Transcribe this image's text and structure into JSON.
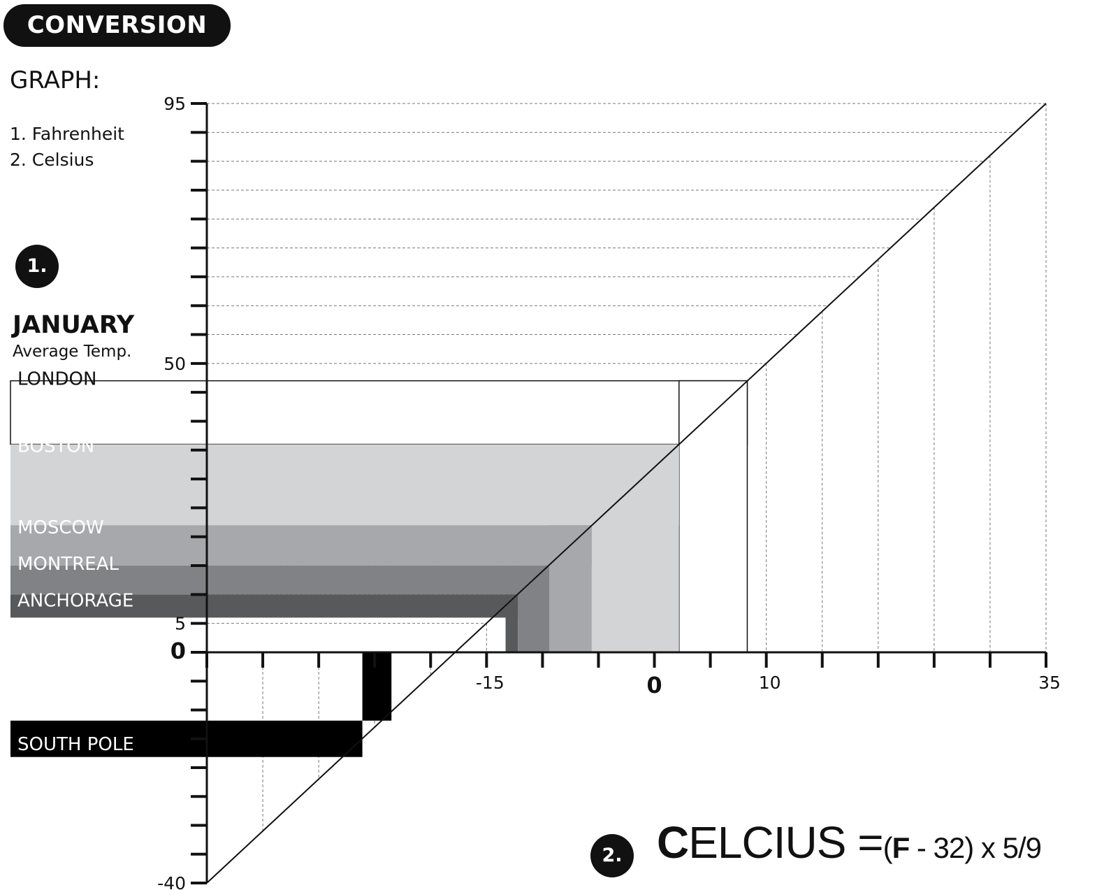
{
  "header": {
    "badge": "CONVERSION",
    "graph_label": "GRAPH:"
  },
  "legend": [
    "1. Fahrenheit",
    "2. Celsius"
  ],
  "badges": {
    "one": "1.",
    "two": "2."
  },
  "month": "JANUARY",
  "subtitle": "Average Temp.",
  "formula": {
    "first_letter": "C",
    "rest": "ELCIUS =",
    "paren_open": "(",
    "f": "F",
    "expr": " - 32) x 5/9"
  },
  "chart_data": {
    "type": "bar",
    "title": "CONVERSION",
    "y_axis": {
      "name": "Fahrenheit",
      "range": [
        -40,
        95
      ],
      "labeled_ticks": [
        {
          "value": 95,
          "label": "95"
        },
        {
          "value": 50,
          "label": "50"
        },
        {
          "value": 5,
          "label": "5"
        },
        {
          "value": 0,
          "label": "0"
        },
        {
          "value": -40,
          "label": "-40"
        }
      ]
    },
    "x_axis": {
      "name": "Celsius",
      "range": [
        -40,
        35
      ],
      "labeled_ticks": [
        {
          "value": -15,
          "label": "-15"
        },
        {
          "value": 0,
          "label": "0"
        },
        {
          "value": 10,
          "label": "10"
        },
        {
          "value": 35,
          "label": "35"
        }
      ]
    },
    "conversion_line": {
      "from": [
        -40,
        -40
      ],
      "to": [
        35,
        95
      ]
    },
    "categories": [
      "LONDON",
      "BOSTON",
      "MOSCOW",
      "MONTREAL",
      "ANCHORAGE",
      "SOUTH POLE"
    ],
    "fahrenheit": [
      47,
      36,
      22,
      15,
      10,
      -15
    ],
    "celsius": [
      8.3,
      2.2,
      -5.6,
      -9.4,
      -12.2,
      -26.1
    ],
    "colors": [
      "#ffffff",
      "#d3d4d6",
      "#a6a8ab",
      "#808285",
      "#58595b",
      "#000000"
    ],
    "label_colors": [
      "#111111",
      "#ffffff",
      "#ffffff",
      "#ffffff",
      "#ffffff",
      "#ffffff"
    ]
  }
}
